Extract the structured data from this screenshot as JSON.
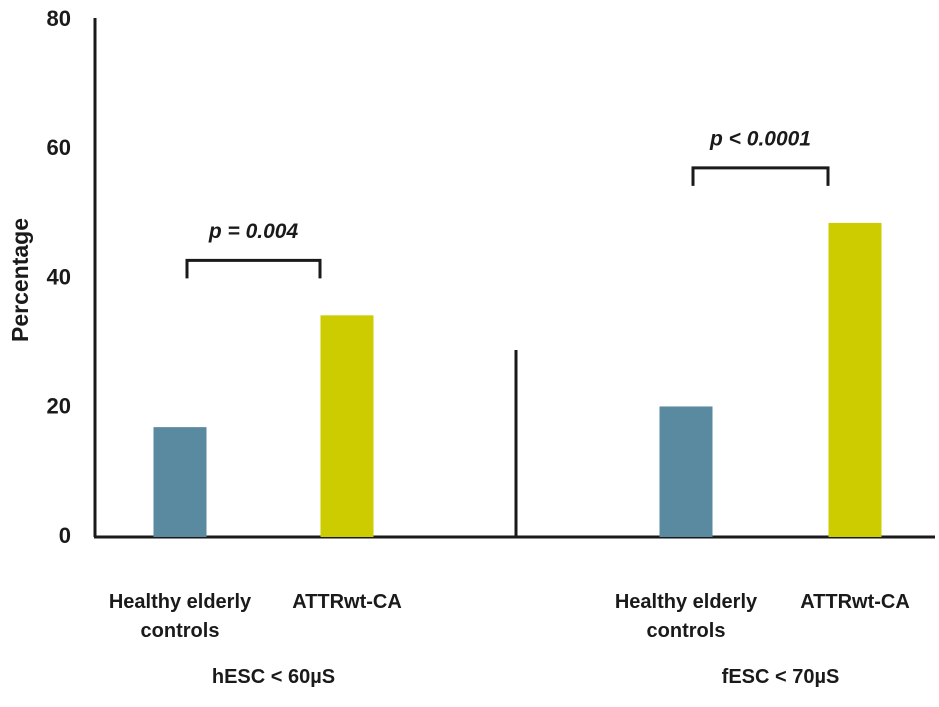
{
  "chart_data": {
    "type": "bar",
    "ylabel": "Percentage",
    "groups": [
      "hESC < 60µS",
      "fESC < 70µS"
    ],
    "series": [
      {
        "name": "Healthy elderly controls",
        "color": "#5a8aa0",
        "values": [
          17,
          20.2
        ]
      },
      {
        "name": "ATTRwt-CA",
        "color": "#cccc00",
        "values": [
          34.3,
          48.6
        ]
      }
    ],
    "annotations": [
      "p = 0.004",
      "p < 0.0001"
    ],
    "ylim": [
      0,
      80
    ],
    "yticks": [
      0,
      20,
      40,
      60,
      80
    ],
    "grid": false
  }
}
